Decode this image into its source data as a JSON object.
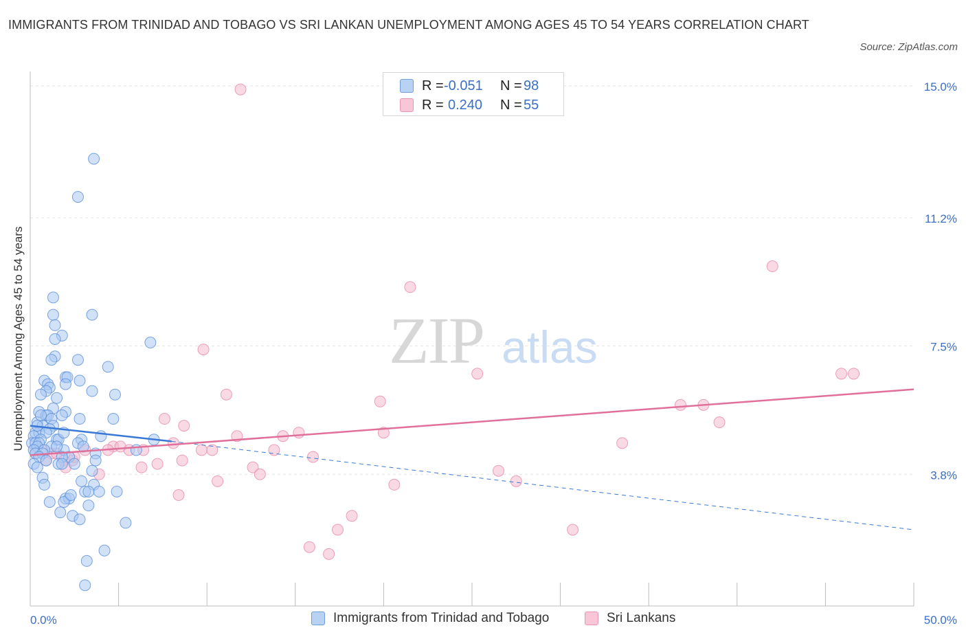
{
  "header": {
    "title": "IMMIGRANTS FROM TRINIDAD AND TOBAGO VS SRI LANKAN UNEMPLOYMENT AMONG AGES 45 TO 54 YEARS CORRELATION CHART",
    "source": "Source: ZipAtlas.com"
  },
  "watermark": {
    "zip": "ZIP",
    "atlas": "atlas"
  },
  "legend_top": {
    "rows": [
      {
        "r_label": "R =",
        "r_value": "-0.051",
        "n_label": "N =",
        "n_value": "98"
      },
      {
        "r_label": "R =",
        "r_value": "0.240",
        "n_label": "N =",
        "n_value": "55"
      }
    ]
  },
  "colors": {
    "blue_fill": "#a9c8f2",
    "blue_stroke": "#5b8fd9",
    "blue_line": "#3a78d6",
    "pink_fill": "#f4b9cd",
    "pink_stroke": "#e78aa8",
    "pink_line": "#e0709a",
    "tick_label": "#3a6fc4",
    "grid": "#e3e3e3"
  },
  "chart_data": {
    "type": "scatter",
    "title": "IMMIGRANTS FROM TRINIDAD AND TOBAGO VS SRI LANKAN UNEMPLOYMENT AMONG AGES 45 TO 54 YEARS CORRELATION CHART",
    "xlabel": "",
    "ylabel": "Unemployment Among Ages 45 to 54 years",
    "xlim": [
      0,
      50
    ],
    "ylim": [
      0,
      15.3
    ],
    "x_tick_labels": [
      "0.0%",
      "50.0%"
    ],
    "y_ticks": [
      3.8,
      7.5,
      11.2,
      15.0
    ],
    "y_tick_labels": [
      "3.8%",
      "7.5%",
      "11.2%",
      "15.0%"
    ],
    "grid": true,
    "legend_position": "bottom",
    "series": [
      {
        "name": "Immigrants from Trinidad and Tobago",
        "r": -0.051,
        "n": 98,
        "trend_solid": [
          [
            0,
            5.2
          ],
          [
            8,
            4.75
          ]
        ],
        "trend_dashed": [
          [
            8,
            4.75
          ],
          [
            50,
            2.2
          ]
        ],
        "points": [
          [
            3.6,
            12.9
          ],
          [
            2.7,
            11.8
          ],
          [
            1.3,
            8.9
          ],
          [
            3.5,
            8.4
          ],
          [
            1.3,
            8.4
          ],
          [
            1.4,
            8.1
          ],
          [
            1.8,
            7.8
          ],
          [
            1.4,
            7.7
          ],
          [
            6.8,
            7.6
          ],
          [
            1.4,
            7.2
          ],
          [
            1.2,
            7.1
          ],
          [
            2.7,
            7.1
          ],
          [
            4.4,
            6.9
          ],
          [
            2.0,
            6.6
          ],
          [
            2.1,
            6.6
          ],
          [
            0.8,
            6.5
          ],
          [
            2.8,
            6.5
          ],
          [
            1.0,
            6.4
          ],
          [
            1.1,
            6.3
          ],
          [
            0.9,
            6.2
          ],
          [
            2.0,
            6.4
          ],
          [
            0.6,
            6.1
          ],
          [
            3.5,
            6.2
          ],
          [
            4.8,
            6.1
          ],
          [
            1.5,
            6.0
          ],
          [
            1.3,
            5.7
          ],
          [
            0.5,
            5.6
          ],
          [
            2.0,
            5.6
          ],
          [
            0.9,
            5.5
          ],
          [
            1.0,
            5.5
          ],
          [
            1.8,
            5.5
          ],
          [
            2.8,
            5.4
          ],
          [
            1.2,
            5.4
          ],
          [
            4.7,
            5.4
          ],
          [
            0.4,
            5.3
          ],
          [
            0.7,
            5.2
          ],
          [
            1.3,
            5.2
          ],
          [
            1.1,
            5.1
          ],
          [
            0.3,
            5.0
          ],
          [
            0.5,
            5.0
          ],
          [
            0.9,
            5.0
          ],
          [
            0.2,
            4.9
          ],
          [
            0.6,
            4.8
          ],
          [
            1.5,
            4.8
          ],
          [
            2.9,
            4.8
          ],
          [
            7.0,
            4.8
          ],
          [
            0.1,
            4.7
          ],
          [
            0.3,
            4.7
          ],
          [
            0.5,
            4.7
          ],
          [
            1.6,
            4.8
          ],
          [
            0.4,
            4.6
          ],
          [
            1.2,
            4.6
          ],
          [
            2.7,
            4.7
          ],
          [
            0.2,
            4.5
          ],
          [
            0.8,
            4.5
          ],
          [
            1.9,
            4.5
          ],
          [
            0.3,
            4.4
          ],
          [
            0.7,
            4.4
          ],
          [
            2.2,
            4.3
          ],
          [
            3.7,
            4.4
          ],
          [
            0.5,
            4.3
          ],
          [
            1.8,
            4.3
          ],
          [
            0.9,
            4.2
          ],
          [
            6.0,
            4.5
          ],
          [
            0.2,
            4.1
          ],
          [
            1.6,
            4.1
          ],
          [
            3.7,
            4.2
          ],
          [
            1.8,
            4.1
          ],
          [
            0.4,
            4.0
          ],
          [
            3.5,
            3.9
          ],
          [
            0.7,
            3.7
          ],
          [
            2.9,
            3.6
          ],
          [
            0.8,
            3.5
          ],
          [
            3.6,
            3.5
          ],
          [
            3.9,
            3.3
          ],
          [
            4.9,
            3.3
          ],
          [
            3.1,
            3.3
          ],
          [
            3.3,
            3.3
          ],
          [
            2.0,
            3.1
          ],
          [
            2.2,
            3.1
          ],
          [
            1.1,
            3.0
          ],
          [
            1.9,
            3.0
          ],
          [
            3.3,
            2.9
          ],
          [
            1.7,
            2.7
          ],
          [
            2.4,
            2.6
          ],
          [
            2.8,
            2.5
          ],
          [
            5.4,
            2.4
          ],
          [
            4.2,
            1.6
          ],
          [
            3.2,
            1.3
          ],
          [
            3.1,
            0.6
          ],
          [
            2.3,
            3.2
          ],
          [
            0.4,
            5.2
          ],
          [
            1.5,
            4.6
          ],
          [
            2.5,
            4.1
          ],
          [
            0.6,
            5.5
          ],
          [
            1.9,
            5.0
          ],
          [
            3.0,
            4.6
          ],
          [
            4.0,
            4.9
          ]
        ]
      },
      {
        "name": "Sri Lankans",
        "r": 0.24,
        "n": 55,
        "trend_solid": [
          [
            0,
            4.35
          ],
          [
            50,
            6.25
          ]
        ],
        "points": [
          [
            11.9,
            14.9
          ],
          [
            42.0,
            9.8
          ],
          [
            21.5,
            9.2
          ],
          [
            9.8,
            7.4
          ],
          [
            25.3,
            6.7
          ],
          [
            45.9,
            6.7
          ],
          [
            46.6,
            6.7
          ],
          [
            11.1,
            6.1
          ],
          [
            19.8,
            5.9
          ],
          [
            36.8,
            5.8
          ],
          [
            38.1,
            5.8
          ],
          [
            7.6,
            5.4
          ],
          [
            39.0,
            5.3
          ],
          [
            8.7,
            5.2
          ],
          [
            15.2,
            5.0
          ],
          [
            20.0,
            5.0
          ],
          [
            11.7,
            4.9
          ],
          [
            14.3,
            4.9
          ],
          [
            33.5,
            4.7
          ],
          [
            8.1,
            4.7
          ],
          [
            4.7,
            4.6
          ],
          [
            5.6,
            4.5
          ],
          [
            6.4,
            4.5
          ],
          [
            9.7,
            4.5
          ],
          [
            10.3,
            4.5
          ],
          [
            13.8,
            4.5
          ],
          [
            4.4,
            4.5
          ],
          [
            3.1,
            4.5
          ],
          [
            16.0,
            4.3
          ],
          [
            8.6,
            4.2
          ],
          [
            1.9,
            4.2
          ],
          [
            7.2,
            4.1
          ],
          [
            1.2,
            4.4
          ],
          [
            0.3,
            4.4
          ],
          [
            0.7,
            4.5
          ],
          [
            2.4,
            4.2
          ],
          [
            6.3,
            4.0
          ],
          [
            2.0,
            4.0
          ],
          [
            12.6,
            4.0
          ],
          [
            26.5,
            3.9
          ],
          [
            3.9,
            3.8
          ],
          [
            13.0,
            3.8
          ],
          [
            27.5,
            3.6
          ],
          [
            10.6,
            3.6
          ],
          [
            20.6,
            3.5
          ],
          [
            8.4,
            3.2
          ],
          [
            18.2,
            2.6
          ],
          [
            17.4,
            2.2
          ],
          [
            30.7,
            2.2
          ],
          [
            15.8,
            1.7
          ],
          [
            16.9,
            1.5
          ],
          [
            2.5,
            4.3
          ],
          [
            5.1,
            4.6
          ],
          [
            0.9,
            4.2
          ],
          [
            1.5,
            4.4
          ]
        ]
      }
    ]
  }
}
